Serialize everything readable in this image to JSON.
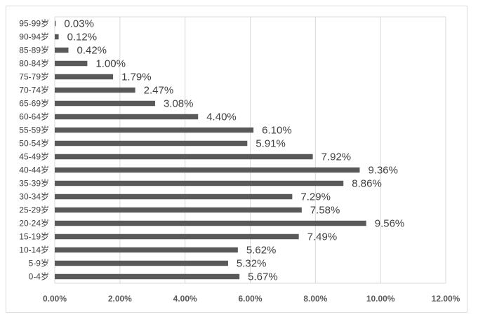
{
  "chart_data": {
    "type": "bar",
    "orientation": "horizontal",
    "categories": [
      "95-99岁",
      "90-94岁",
      "85-89岁",
      "80-84岁",
      "75-79岁",
      "70-74岁",
      "65-69岁",
      "60-64岁",
      "55-59岁",
      "50-54岁",
      "45-49岁",
      "40-44岁",
      "35-39岁",
      "30-34岁",
      "25-29岁",
      "20-24岁",
      "15-19岁",
      "10-14岁",
      "5-9岁",
      "0-4岁"
    ],
    "values": [
      0.03,
      0.12,
      0.42,
      1.0,
      1.79,
      2.47,
      3.08,
      4.4,
      6.1,
      5.91,
      7.92,
      9.36,
      8.86,
      7.29,
      7.58,
      9.56,
      7.49,
      5.62,
      5.32,
      5.67
    ],
    "value_labels": [
      "0.03%",
      "0.12%",
      "0.42%",
      "1.00%",
      "1.79%",
      "2.47%",
      "3.08%",
      "4.40%",
      "6.10%",
      "5.91%",
      "7.92%",
      "9.36%",
      "8.86%",
      "7.29%",
      "7.58%",
      "9.56%",
      "7.49%",
      "5.62%",
      "5.32%",
      "5.67%"
    ],
    "x_ticks": [
      "0.00%",
      "2.00%",
      "4.00%",
      "6.00%",
      "8.00%",
      "10.00%",
      "12.00%"
    ],
    "xlim": [
      0,
      12
    ],
    "title": "",
    "xlabel": "",
    "ylabel": "",
    "grid": "vertical",
    "bar_color": "#595959",
    "grid_color": "#d9d9d9"
  }
}
